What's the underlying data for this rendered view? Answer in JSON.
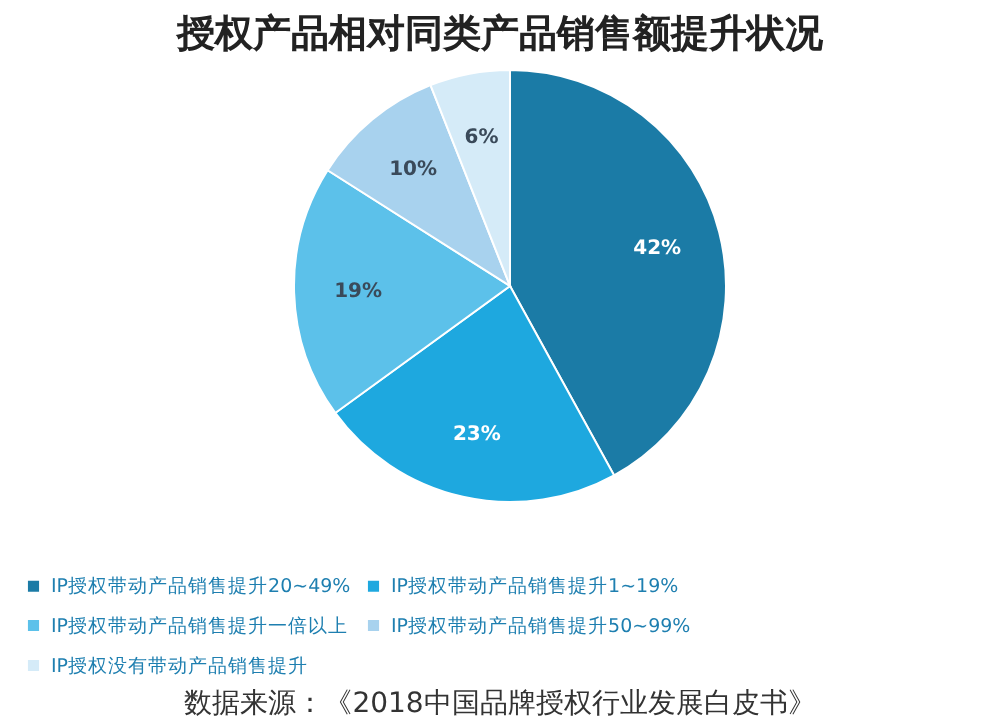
{
  "chart_data": {
    "type": "pie",
    "title": "授权产品相对同类产品销售额提升状况",
    "categories": [
      "IP授权带动产品销售提升20~49%",
      "IP授权带动产品销售提升1~19%",
      "IP授权带动产品销售提升一倍以上",
      "IP授权带动产品销售提升50~99%",
      "IP授权没有带动产品销售提升"
    ],
    "values": [
      42,
      23,
      19,
      10,
      6
    ],
    "colors": [
      "#1b7ba6",
      "#1ea8df",
      "#5cc1ea",
      "#a8d2ee",
      "#d5ebf8"
    ],
    "value_labels": [
      "42%",
      "23%",
      "19%",
      "10%",
      "6%"
    ],
    "legend": "bottom",
    "annotations": [
      "数据来源：《2018中国品牌授权行业发展白皮书》"
    ]
  }
}
